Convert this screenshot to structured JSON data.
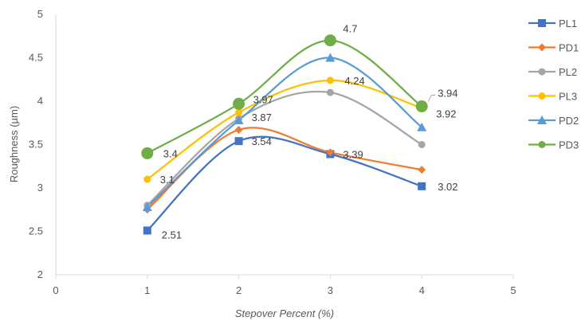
{
  "chart_data": {
    "type": "line",
    "title": "",
    "xlabel": "Stepover Percent (%)",
    "ylabel": "Roughness (µm)",
    "xlim": [
      0,
      5
    ],
    "ylim": [
      2,
      5
    ],
    "xticks": [
      "0",
      "1",
      "2",
      "3",
      "4",
      "5"
    ],
    "yticks": [
      "2",
      "2.5",
      "3",
      "3.5",
      "4",
      "4.5",
      "5"
    ],
    "x": [
      1,
      2,
      3,
      4
    ],
    "grid": false,
    "smooth": true,
    "legend_position": "right",
    "series": [
      {
        "name": "PL1",
        "values": [
          2.51,
          3.54,
          3.39,
          3.02
        ],
        "color": "#4472c4",
        "marker": "square",
        "labels": [
          "2.51",
          "3.54",
          "3.39",
          "3.02"
        ]
      },
      {
        "name": "PD1",
        "values": [
          2.75,
          3.67,
          3.41,
          3.21
        ],
        "color": "#ed7d31",
        "marker": "diamond",
        "labels": []
      },
      {
        "name": "PL2",
        "values": [
          2.8,
          3.8,
          4.1,
          3.5
        ],
        "color": "#a5a5a5",
        "marker": "circle",
        "labels": []
      },
      {
        "name": "PL3",
        "values": [
          3.1,
          3.87,
          4.24,
          3.92
        ],
        "color": "#ffc000",
        "marker": "circle",
        "labels": [
          "3.1",
          "3.87",
          "4.24",
          "3.92"
        ]
      },
      {
        "name": "PD2",
        "values": [
          2.78,
          3.78,
          4.5,
          3.7
        ],
        "color": "#5b9bd5",
        "marker": "triangle",
        "labels": []
      },
      {
        "name": "PD3",
        "values": [
          3.4,
          3.97,
          4.7,
          3.94
        ],
        "color": "#70ad47",
        "marker": "bigcircle",
        "labels": [
          "3.4",
          "3.97",
          "4.7",
          "3.94"
        ]
      }
    ]
  }
}
